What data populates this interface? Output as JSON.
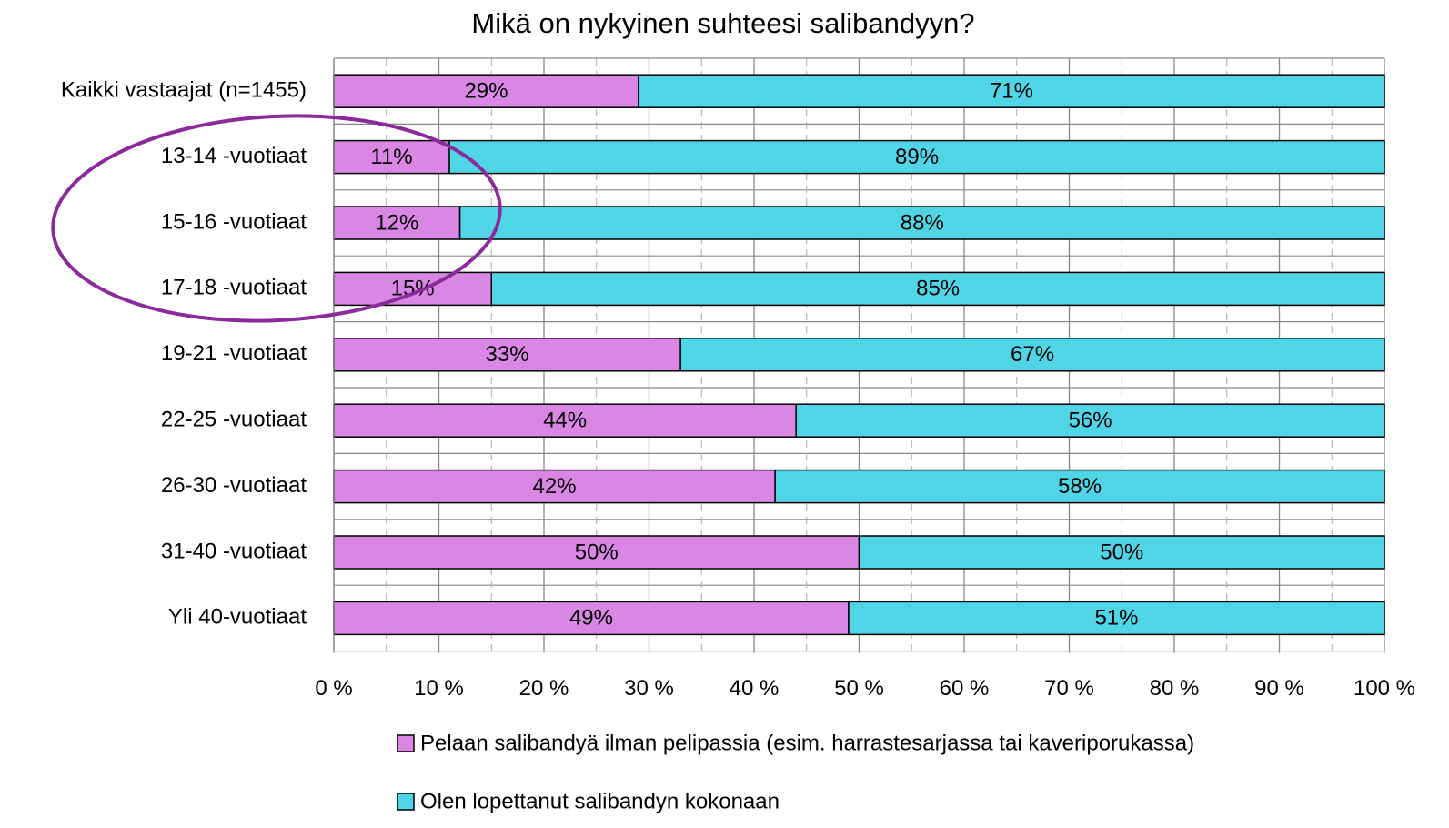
{
  "chart_data": {
    "type": "stacked_barh",
    "title": "Mikä on nykyinen suhteesi salibandyyn?",
    "categories": [
      "Kaikki vastaajat (n=1455)",
      "13-14 -vuotiaat",
      "15-16 -vuotiaat",
      "17-18 -vuotiaat",
      "19-21 -vuotiaat",
      "22-25 -vuotiaat",
      "26-30 -vuotiaat",
      "31-40 -vuotiaat",
      "Yli 40-vuotiaat"
    ],
    "series": [
      {
        "name": "Pelaan salibandyä ilman pelipassia (esim. harrastesarjassa tai kaveriporukassa)",
        "color": "#da86e4",
        "values": [
          29,
          11,
          12,
          15,
          33,
          44,
          42,
          50,
          49
        ],
        "value_labels": [
          "29%",
          "11%",
          "12%",
          "15%",
          "33%",
          "44%",
          "42%",
          "50%",
          "49%"
        ]
      },
      {
        "name": "Olen lopettanut salibandyn kokonaan",
        "color": "#4fd5e5",
        "values": [
          71,
          89,
          88,
          85,
          67,
          56,
          58,
          50,
          51
        ],
        "value_labels": [
          "71%",
          "89%",
          "88%",
          "85%",
          "67%",
          "56%",
          "58%",
          "50%",
          "51%"
        ]
      }
    ],
    "xlim": [
      0,
      100
    ],
    "xticks": [
      {
        "value": 0,
        "label": "0 %"
      },
      {
        "value": 10,
        "label": "10 %"
      },
      {
        "value": 20,
        "label": "20 %"
      },
      {
        "value": 30,
        "label": "30 %"
      },
      {
        "value": 40,
        "label": "40 %"
      },
      {
        "value": 50,
        "label": "50 %"
      },
      {
        "value": 60,
        "label": "60 %"
      },
      {
        "value": 70,
        "label": "70 %"
      },
      {
        "value": 80,
        "label": "80 %"
      },
      {
        "value": 90,
        "label": "90 %"
      },
      {
        "value": 100,
        "label": "100 %"
      }
    ],
    "xminorticks": [
      5,
      15,
      25,
      35,
      45,
      55,
      65,
      75,
      85,
      95
    ],
    "grid": true,
    "legend": "bottom"
  }
}
